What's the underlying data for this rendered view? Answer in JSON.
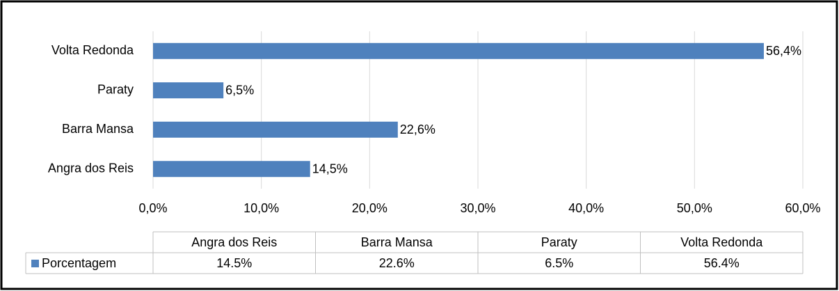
{
  "chart_data": {
    "type": "bar",
    "orientation": "horizontal",
    "categories": [
      "Angra dos Reis",
      "Barra Mansa",
      "Paraty",
      "Volta Redonda"
    ],
    "series": [
      {
        "name": "Porcentagem",
        "color": "#4f81bd",
        "values": [
          14.5,
          22.6,
          6.5,
          56.4
        ],
        "value_labels": [
          "14,5%",
          "22,6%",
          "6,5%",
          "56,4%"
        ],
        "table_labels": [
          "14.5%",
          "22.6%",
          "6.5%",
          "56.4%"
        ]
      }
    ],
    "xlim": [
      0,
      60
    ],
    "xticks": [
      {
        "value": 0,
        "label": "0,0%"
      },
      {
        "value": 10,
        "label": "10,0%"
      },
      {
        "value": 20,
        "label": "20,0%"
      },
      {
        "value": 30,
        "label": "30,0%"
      },
      {
        "value": 40,
        "label": "40,0%"
      },
      {
        "value": 50,
        "label": "50,0%"
      },
      {
        "value": 60,
        "label": "60,0%"
      }
    ],
    "grid": true,
    "data_table": true
  }
}
